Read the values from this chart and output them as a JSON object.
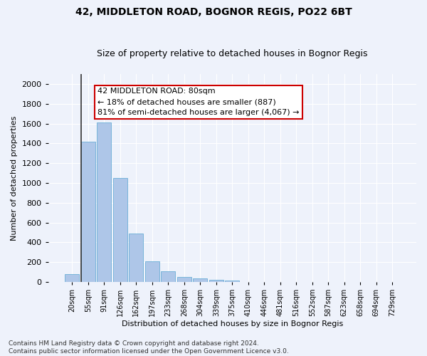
{
  "title": "42, MIDDLETON ROAD, BOGNOR REGIS, PO22 6BT",
  "subtitle": "Size of property relative to detached houses in Bognor Regis",
  "xlabel": "Distribution of detached houses by size in Bognor Regis",
  "ylabel": "Number of detached properties",
  "bin_labels": [
    "20sqm",
    "55sqm",
    "91sqm",
    "126sqm",
    "162sqm",
    "197sqm",
    "233sqm",
    "268sqm",
    "304sqm",
    "339sqm",
    "375sqm",
    "410sqm",
    "446sqm",
    "481sqm",
    "516sqm",
    "552sqm",
    "587sqm",
    "623sqm",
    "658sqm",
    "694sqm",
    "729sqm"
  ],
  "bar_values": [
    80,
    1420,
    1610,
    1050,
    490,
    205,
    105,
    48,
    32,
    22,
    15,
    0,
    0,
    0,
    0,
    0,
    0,
    0,
    0,
    0,
    0
  ],
  "bar_color": "#aec6e8",
  "bar_edge_color": "#6aaed6",
  "property_bin_index": 1,
  "marker_line_bin": 1,
  "annotation_text": "42 MIDDLETON ROAD: 80sqm\n← 18% of detached houses are smaller (887)\n81% of semi-detached houses are larger (4,067) →",
  "annotation_box_color": "#ffffff",
  "annotation_box_edge_color": "#cc0000",
  "ylim": [
    0,
    2100
  ],
  "yticks": [
    0,
    200,
    400,
    600,
    800,
    1000,
    1200,
    1400,
    1600,
    1800,
    2000
  ],
  "footnote": "Contains HM Land Registry data © Crown copyright and database right 2024.\nContains public sector information licensed under the Open Government Licence v3.0.",
  "background_color": "#eef2fb",
  "grid_color": "#ffffff",
  "title_fontsize": 10,
  "subtitle_fontsize": 9,
  "axis_label_fontsize": 8,
  "tick_fontsize": 8,
  "annotation_fontsize": 8,
  "footnote_fontsize": 6.5
}
